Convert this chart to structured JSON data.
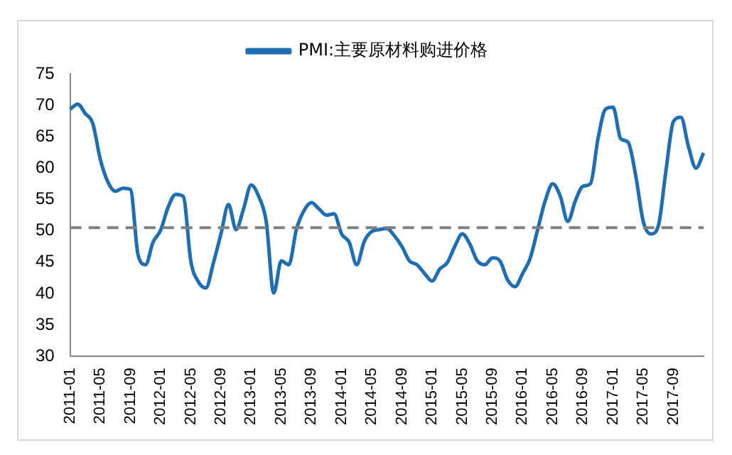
{
  "chart_data": {
    "type": "line",
    "categories": [
      "2011-01",
      null,
      null,
      null,
      "2011-05",
      null,
      null,
      null,
      "2011-09",
      null,
      null,
      null,
      "2012-01",
      null,
      null,
      null,
      "2012-05",
      null,
      null,
      null,
      "2012-09",
      null,
      null,
      null,
      "2013-01",
      null,
      null,
      null,
      "2013-05",
      null,
      null,
      null,
      "2013-09",
      null,
      null,
      null,
      "2014-01",
      null,
      null,
      null,
      "2014-05",
      null,
      null,
      null,
      "2014-09",
      null,
      null,
      null,
      "2015-01",
      null,
      null,
      null,
      "2015-05",
      null,
      null,
      null,
      "2015-09",
      null,
      null,
      null,
      "2016-01",
      null,
      null,
      null,
      "2016-05",
      null,
      null,
      null,
      "2016-09",
      null,
      null,
      null,
      "2017-01",
      null,
      null,
      null,
      "2017-05",
      null,
      null,
      null,
      "2017-09",
      null,
      null,
      null,
      null
    ],
    "series": [
      {
        "name": "PMI:主要原材料购进价格",
        "color": "#1f6db3",
        "values": [
          69.4,
          70.2,
          68.7,
          67.1,
          61.4,
          57.8,
          56.3,
          56.8,
          56.6,
          46.2,
          44.6,
          48.2,
          50.1,
          53.8,
          55.8,
          55.5,
          45.2,
          41.9,
          40.9,
          44.9,
          49.5,
          54.2,
          50.2,
          53.5,
          57.3,
          55.5,
          51.5,
          40.1,
          45.2,
          44.6,
          50.2,
          53.2,
          54.5,
          53.5,
          52.5,
          52.7,
          49.5,
          48.2,
          44.6,
          48.3,
          49.9,
          50.2,
          50.4,
          49.2,
          47.5,
          45.2,
          44.6,
          43.2,
          42.0,
          43.9,
          44.9,
          47.5,
          49.5,
          47.9,
          45.2,
          44.6,
          45.7,
          45.2,
          42.2,
          41.1,
          43.2,
          45.6,
          50.2,
          54.8,
          57.5,
          55.5,
          51.5,
          54.8,
          57.1,
          57.5,
          64.7,
          69.4,
          69.7,
          64.7,
          64.1,
          58.8,
          51.5,
          49.5,
          50.8,
          59.5,
          67.4,
          68.1,
          63.4,
          60.0,
          62.4
        ]
      }
    ],
    "ylim": [
      30,
      75
    ],
    "yticks": [
      30,
      35,
      40,
      45,
      50,
      55,
      60,
      65,
      70,
      75
    ],
    "grid": false,
    "legend": "top",
    "ref_lines": [
      {
        "axis": "y",
        "value": 50.5,
        "color": "#7f7f7f",
        "line_style": "dashed"
      }
    ]
  }
}
